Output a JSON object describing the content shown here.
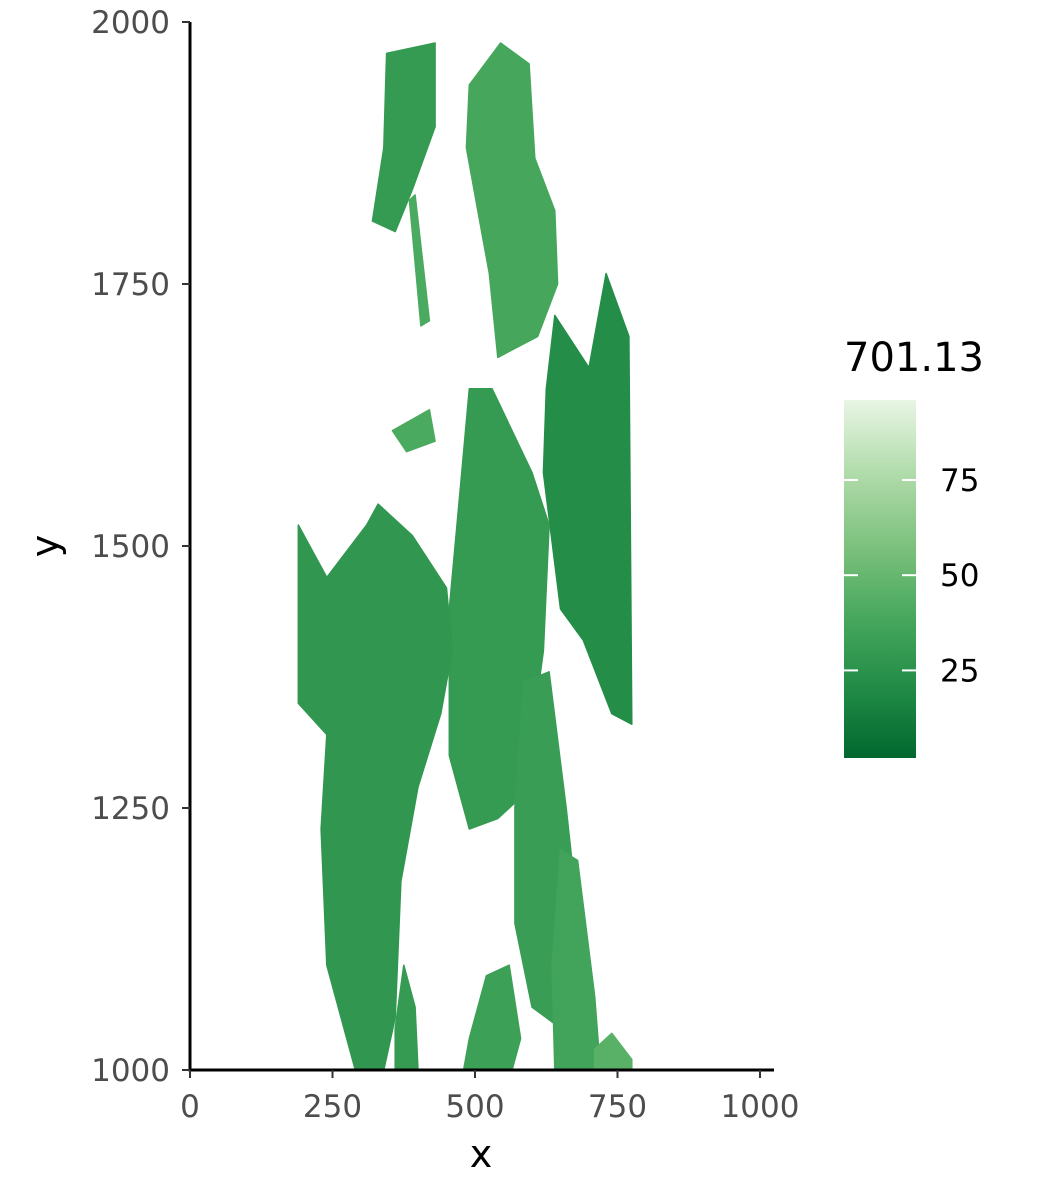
{
  "chart_data": {
    "type": "heatmap",
    "title": "",
    "xlabel": "x",
    "ylabel": "y",
    "xlim": [
      0,
      1020
    ],
    "ylim": [
      1000,
      2000
    ],
    "x_ticks": [
      {
        "value": 0,
        "label": "0"
      },
      {
        "value": 250,
        "label": "250"
      },
      {
        "value": 500,
        "label": "500"
      },
      {
        "value": 750,
        "label": "750"
      },
      {
        "value": 1000,
        "label": "1000"
      }
    ],
    "y_ticks": [
      {
        "value": 1000,
        "label": "1000"
      },
      {
        "value": 1250,
        "label": "1250"
      },
      {
        "value": 1500,
        "label": "1500"
      },
      {
        "value": 1750,
        "label": "1750"
      },
      {
        "value": 2000,
        "label": "2000"
      }
    ],
    "grid": false,
    "legend": {
      "title": "701.13",
      "placement": "right",
      "scale": "continuous",
      "min": 2,
      "max": 96,
      "ticks": [
        {
          "value": 25,
          "label": "25"
        },
        {
          "value": 50,
          "label": "50"
        },
        {
          "value": 75,
          "label": "75"
        }
      ],
      "colors": [
        "#00682e",
        "#228c47",
        "#49a95e",
        "#7fc27f",
        "#b2dcac",
        "#e8f5e4"
      ]
    },
    "regions": [
      {
        "name": "top-left leaf",
        "value": 30,
        "polygon": [
          [
            345,
            1970
          ],
          [
            430,
            1980
          ],
          [
            430,
            1900
          ],
          [
            390,
            1840
          ],
          [
            360,
            1800
          ],
          [
            320,
            1810
          ],
          [
            340,
            1880
          ]
        ]
      },
      {
        "name": "top-left stem",
        "value": 40,
        "polygon": [
          [
            385,
            1830
          ],
          [
            395,
            1835
          ],
          [
            420,
            1715
          ],
          [
            405,
            1710
          ]
        ]
      },
      {
        "name": "top-center leaf",
        "value": 38,
        "polygon": [
          [
            490,
            1940
          ],
          [
            545,
            1980
          ],
          [
            595,
            1960
          ],
          [
            605,
            1870
          ],
          [
            640,
            1820
          ],
          [
            645,
            1750
          ],
          [
            610,
            1700
          ],
          [
            540,
            1680
          ],
          [
            525,
            1760
          ],
          [
            505,
            1820
          ],
          [
            485,
            1880
          ]
        ]
      },
      {
        "name": "right leaf",
        "value": 22,
        "polygon": [
          [
            640,
            1720
          ],
          [
            700,
            1670
          ],
          [
            730,
            1760
          ],
          [
            770,
            1700
          ],
          [
            775,
            1330
          ],
          [
            740,
            1340
          ],
          [
            690,
            1410
          ],
          [
            650,
            1440
          ],
          [
            620,
            1570
          ],
          [
            625,
            1650
          ]
        ]
      },
      {
        "name": "center leaf",
        "value": 30,
        "polygon": [
          [
            490,
            1650
          ],
          [
            530,
            1650
          ],
          [
            600,
            1570
          ],
          [
            630,
            1520
          ],
          [
            620,
            1400
          ],
          [
            600,
            1320
          ],
          [
            580,
            1260
          ],
          [
            540,
            1240
          ],
          [
            490,
            1230
          ],
          [
            455,
            1300
          ],
          [
            455,
            1440
          ],
          [
            475,
            1560
          ]
        ]
      },
      {
        "name": "left leaf",
        "value": 28,
        "polygon": [
          [
            190,
            1520
          ],
          [
            240,
            1470
          ],
          [
            310,
            1520
          ],
          [
            330,
            1540
          ],
          [
            390,
            1510
          ],
          [
            450,
            1460
          ],
          [
            460,
            1400
          ],
          [
            440,
            1340
          ],
          [
            400,
            1270
          ],
          [
            370,
            1180
          ],
          [
            360,
            1050
          ],
          [
            340,
            1000
          ],
          [
            290,
            1000
          ],
          [
            240,
            1100
          ],
          [
            230,
            1230
          ],
          [
            240,
            1320
          ],
          [
            190,
            1350
          ]
        ]
      },
      {
        "name": "center-right leaf",
        "value": 32,
        "polygon": [
          [
            585,
            1370
          ],
          [
            630,
            1380
          ],
          [
            660,
            1250
          ],
          [
            680,
            1150
          ],
          [
            650,
            1040
          ],
          [
            600,
            1060
          ],
          [
            570,
            1140
          ],
          [
            570,
            1250
          ]
        ]
      },
      {
        "name": "bottom-right leaf",
        "value": 36,
        "polygon": [
          [
            650,
            1210
          ],
          [
            680,
            1200
          ],
          [
            710,
            1070
          ],
          [
            720,
            1000
          ],
          [
            640,
            1000
          ],
          [
            635,
            1100
          ]
        ]
      },
      {
        "name": "bottom-center leaf",
        "value": 34,
        "polygon": [
          [
            490,
            1030
          ],
          [
            520,
            1090
          ],
          [
            560,
            1100
          ],
          [
            580,
            1030
          ],
          [
            565,
            1000
          ],
          [
            480,
            1000
          ]
        ]
      },
      {
        "name": "bottom-left leaf",
        "value": 30,
        "polygon": [
          [
            360,
            1040
          ],
          [
            375,
            1100
          ],
          [
            395,
            1060
          ],
          [
            400,
            1000
          ],
          [
            360,
            1000
          ]
        ]
      },
      {
        "name": "bottom-right small leaf",
        "value": 45,
        "polygon": [
          [
            710,
            1020
          ],
          [
            740,
            1035
          ],
          [
            775,
            1010
          ],
          [
            775,
            1000
          ],
          [
            710,
            1000
          ]
        ]
      },
      {
        "name": "middle small leaf",
        "value": 40,
        "polygon": [
          [
            355,
            1610
          ],
          [
            420,
            1630
          ],
          [
            430,
            1600
          ],
          [
            380,
            1590
          ]
        ]
      }
    ]
  }
}
